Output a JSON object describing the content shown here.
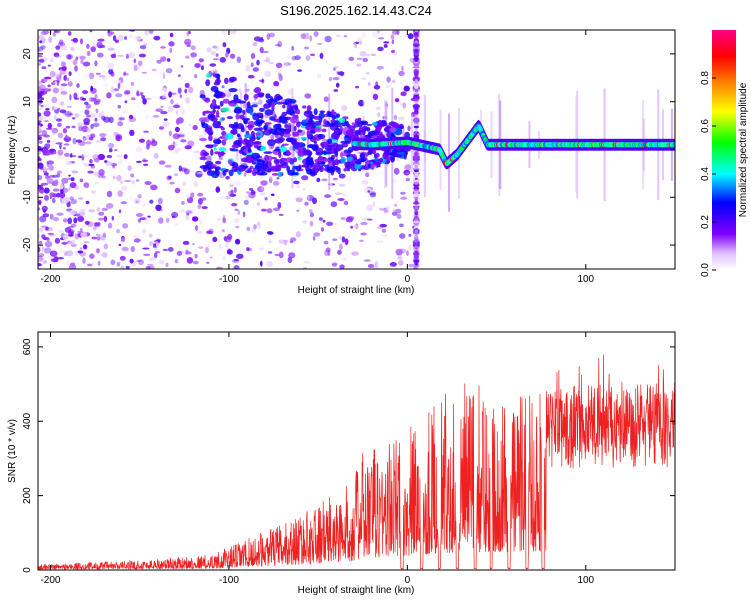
{
  "title": "S196.2025.162.14.43.C24",
  "chart_data": [
    {
      "type": "heatmap",
      "name": "spectrogram",
      "xlabel": "Height of straight line (km)",
      "ylabel": "Frequency (Hz)",
      "xlim": [
        -207,
        150
      ],
      "ylim": [
        -25,
        25
      ],
      "xticks": [
        -200,
        -100,
        0,
        100
      ],
      "yticks": [
        -20,
        -10,
        0,
        10,
        20
      ],
      "colorbar": {
        "label": "Normalized spectral amplitude",
        "range": [
          0,
          1
        ],
        "ticks": [
          "0.0",
          "0.2",
          "0.4",
          "0.6",
          "0.8"
        ],
        "tick_values": [
          0,
          0.2,
          0.4,
          0.6,
          0.8
        ]
      },
      "ridge": [
        {
          "x": -100,
          "y": 5
        },
        {
          "x": -80,
          "y": 3.5
        },
        {
          "x": -60,
          "y": 2
        },
        {
          "x": -40,
          "y": 1.5
        },
        {
          "x": -20,
          "y": 1
        },
        {
          "x": 0,
          "y": 1.5
        },
        {
          "x": 18,
          "y": 0
        },
        {
          "x": 22,
          "y": -3
        },
        {
          "x": 28,
          "y": -1
        },
        {
          "x": 40,
          "y": 5
        },
        {
          "x": 45,
          "y": 1
        },
        {
          "x": 150,
          "y": 1
        }
      ]
    },
    {
      "type": "line",
      "name": "snr",
      "xlabel": "Height of straight line (km)",
      "ylabel": "SNR (10 * v/v)",
      "xlim": [
        -207,
        150
      ],
      "ylim": [
        0,
        640
      ],
      "xticks": [
        -200,
        -100,
        0,
        100
      ],
      "yticks": [
        0,
        200,
        400,
        600
      ],
      "color": "#ee2020",
      "envelope": [
        {
          "x": -207,
          "y": 15
        },
        {
          "x": -150,
          "y": 25
        },
        {
          "x": -110,
          "y": 40
        },
        {
          "x": -90,
          "y": 80
        },
        {
          "x": -70,
          "y": 120
        },
        {
          "x": -50,
          "y": 170
        },
        {
          "x": -35,
          "y": 210
        },
        {
          "x": -25,
          "y": 300
        },
        {
          "x": -15,
          "y": 330
        },
        {
          "x": 0,
          "y": 360
        },
        {
          "x": 15,
          "y": 440
        },
        {
          "x": 30,
          "y": 480
        },
        {
          "x": 60,
          "y": 480
        },
        {
          "x": 100,
          "y": 500
        },
        {
          "x": 150,
          "y": 500
        }
      ],
      "dropouts": [
        -3,
        8,
        18,
        28,
        38,
        47,
        57,
        67,
        76
      ]
    }
  ]
}
